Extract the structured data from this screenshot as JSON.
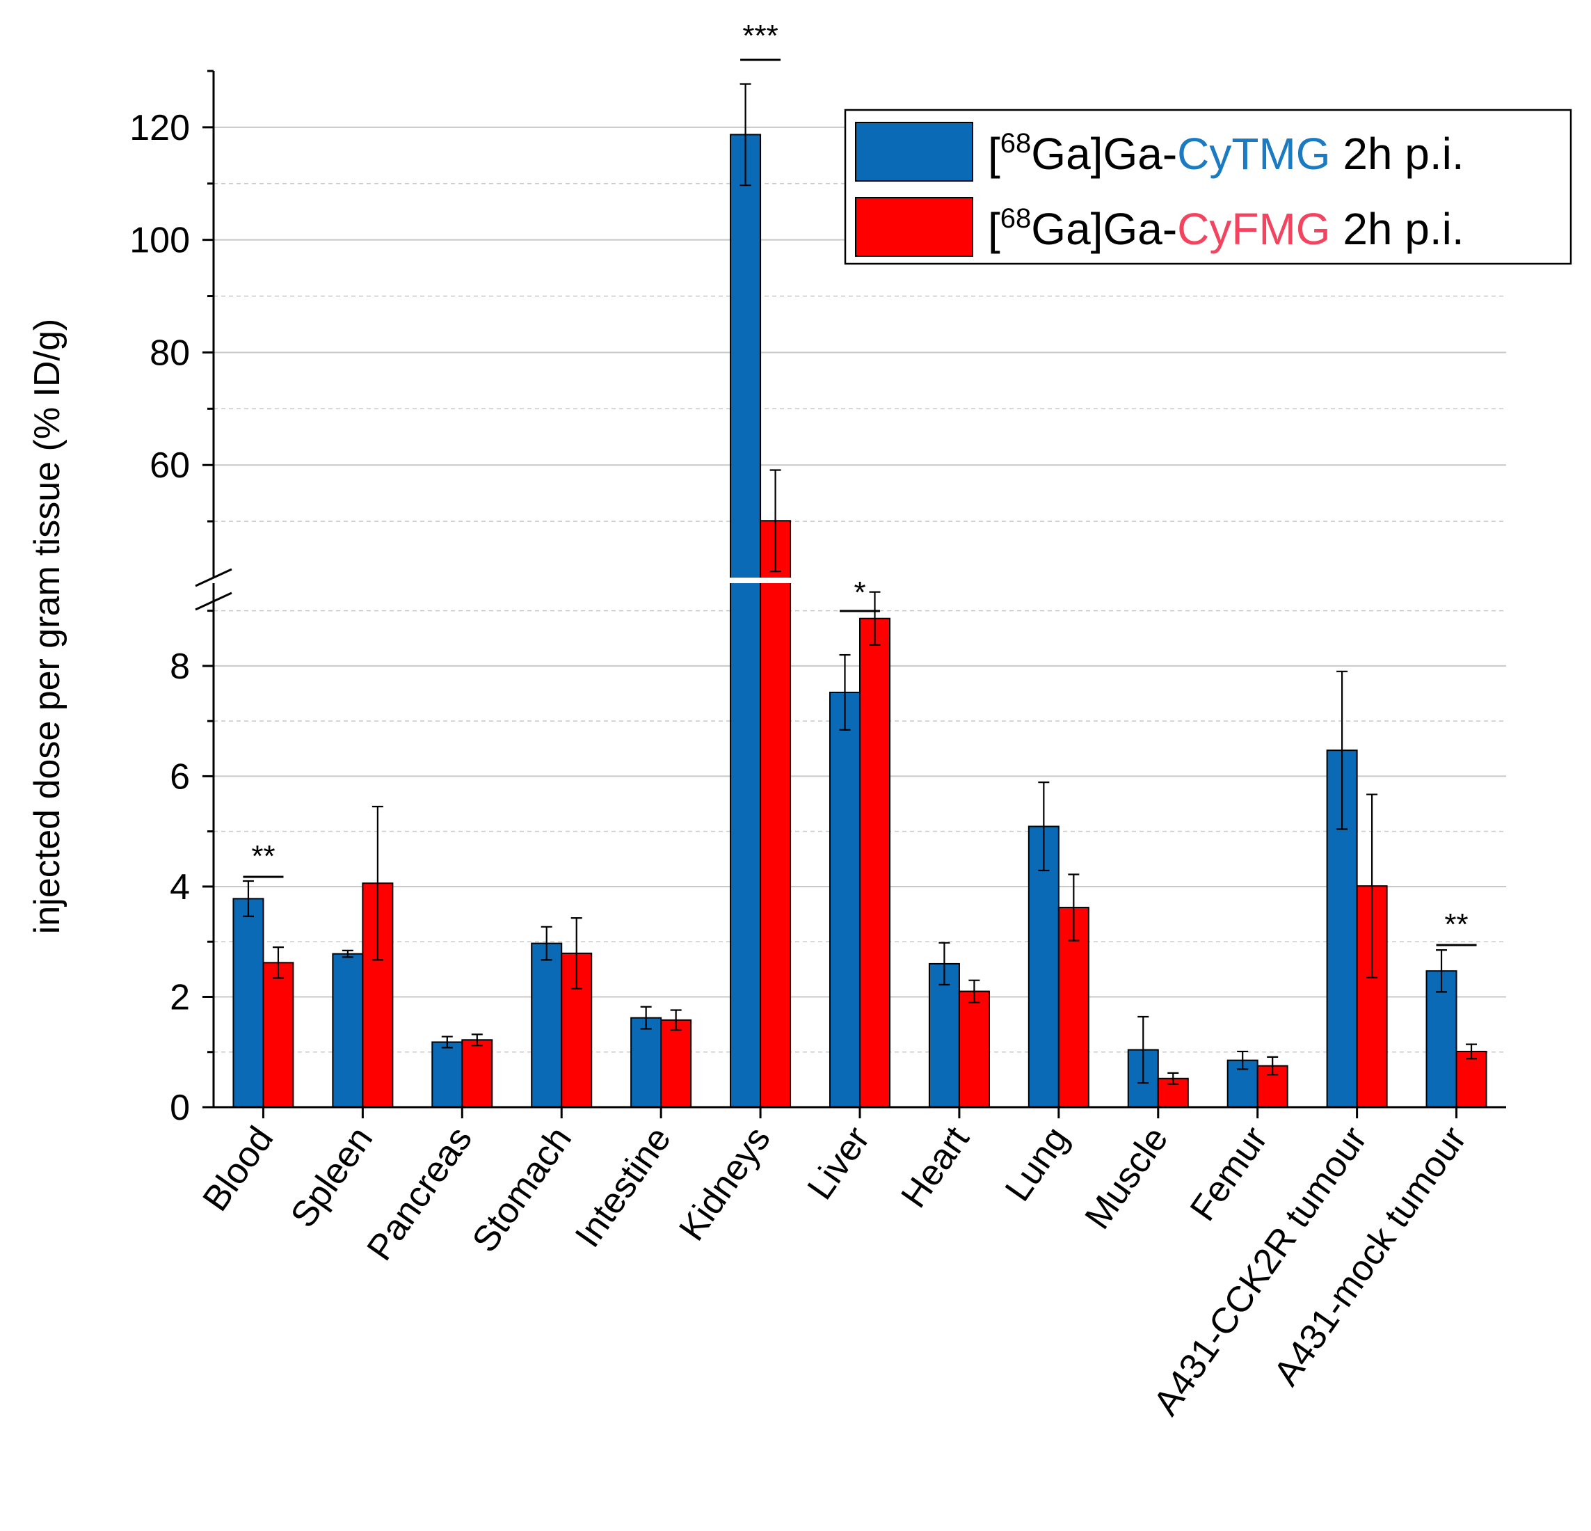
{
  "chart_data": {
    "type": "bar",
    "title": "",
    "xlabel": "",
    "ylabel": "injected dose per gram tissue (% ID/g)",
    "broken_axis": {
      "lower_range": [
        0,
        9.5
      ],
      "upper_range": [
        40,
        130
      ],
      "lower_ticks": [
        0,
        2,
        4,
        6,
        8
      ],
      "upper_ticks": [
        60,
        80,
        100,
        120
      ]
    },
    "grid": true,
    "legend_position": "top-right",
    "categories": [
      "Blood",
      "Spleen",
      "Pancreas",
      "Stomach",
      "Intestine",
      "Kidneys",
      "Liver",
      "Heart",
      "Lung",
      "Muscle",
      "Femur",
      "A431-CCK2R tumour",
      "A431-mock tumour"
    ],
    "series": [
      {
        "name": "[68Ga]Ga-CyTMG 2h p.i.",
        "legend": {
          "prefix": "[",
          "sup": "68",
          "mid": "Ga]Ga-",
          "highlight": "CyTMG",
          "suffix": " 2h p.i."
        },
        "color": "#0a6ab5",
        "highlight_color": "#1a7ac2",
        "values": [
          3.78,
          2.78,
          1.18,
          2.97,
          1.62,
          118.7,
          7.52,
          2.6,
          5.09,
          1.04,
          0.85,
          6.47,
          2.47
        ],
        "errors": [
          0.32,
          0.06,
          0.1,
          0.3,
          0.2,
          9.0,
          0.68,
          0.38,
          0.8,
          0.6,
          0.16,
          1.43,
          0.38
        ]
      },
      {
        "name": "[68Ga]Ga-CyFMG 2h p.i.",
        "legend": {
          "prefix": "[",
          "sup": "68",
          "mid": "Ga]Ga-",
          "highlight": "CyFMG",
          "suffix": " 2h p.i."
        },
        "color": "#ff0000",
        "highlight_color": "#f2445f",
        "values": [
          2.62,
          4.06,
          1.22,
          2.79,
          1.58,
          50.1,
          8.86,
          2.1,
          3.62,
          0.52,
          0.75,
          4.01,
          1.01
        ],
        "errors": [
          0.28,
          1.39,
          0.1,
          0.64,
          0.18,
          9.0,
          0.48,
          0.2,
          0.6,
          0.1,
          0.16,
          1.66,
          0.13
        ]
      }
    ],
    "significance": [
      {
        "category": "Blood",
        "label": "**"
      },
      {
        "category": "Kidneys",
        "label": "***"
      },
      {
        "category": "Liver",
        "label": "*"
      },
      {
        "category": "A431-mock tumour",
        "label": "**"
      }
    ]
  }
}
